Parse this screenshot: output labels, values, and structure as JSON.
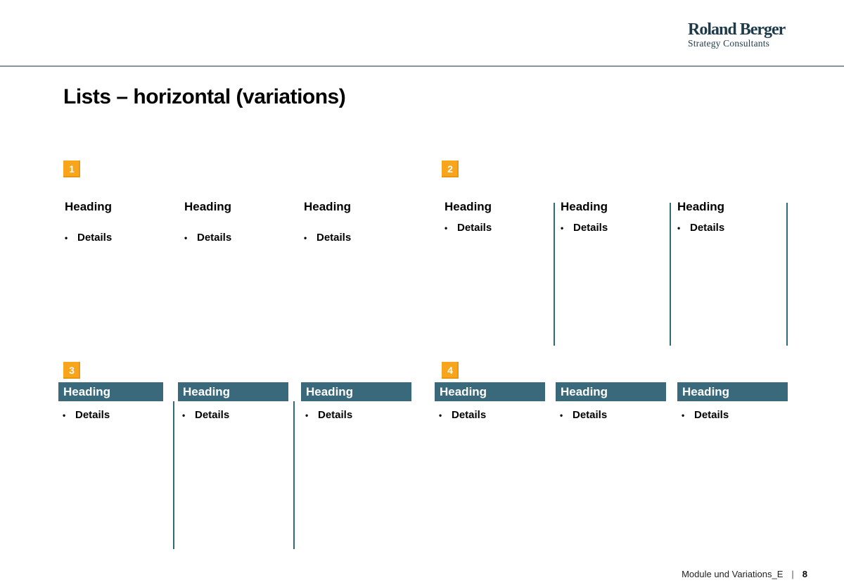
{
  "logo": {
    "name": "Roland Berger",
    "tagline": "Strategy Consultants"
  },
  "title": "Lists – horizontal (variations)",
  "bullet_char": "•",
  "variations": [
    {
      "number": "1",
      "columns": [
        {
          "heading": "Heading",
          "details": "Details"
        },
        {
          "heading": "Heading",
          "details": "Details"
        },
        {
          "heading": "Heading",
          "details": "Details"
        }
      ]
    },
    {
      "number": "2",
      "columns": [
        {
          "heading": "Heading",
          "details": "Details"
        },
        {
          "heading": "Heading",
          "details": "Details"
        },
        {
          "heading": "Heading",
          "details": "Details"
        }
      ]
    },
    {
      "number": "3",
      "columns": [
        {
          "heading": "Heading",
          "details": "Details"
        },
        {
          "heading": "Heading",
          "details": "Details"
        },
        {
          "heading": "Heading",
          "details": "Details"
        }
      ]
    },
    {
      "number": "4",
      "columns": [
        {
          "heading": "Heading",
          "details": "Details"
        },
        {
          "heading": "Heading",
          "details": "Details"
        },
        {
          "heading": "Heading",
          "details": "Details"
        }
      ]
    }
  ],
  "footer": {
    "document": "Module und Variations_E",
    "separator": "|",
    "page": "8"
  },
  "colors": {
    "accent_orange": "#F9A51B",
    "bar_teal": "#39697A",
    "line_teal": "#2F6A7C",
    "logo_petrol": "#1D3B4A",
    "header_rule_gray": "#87969B"
  }
}
